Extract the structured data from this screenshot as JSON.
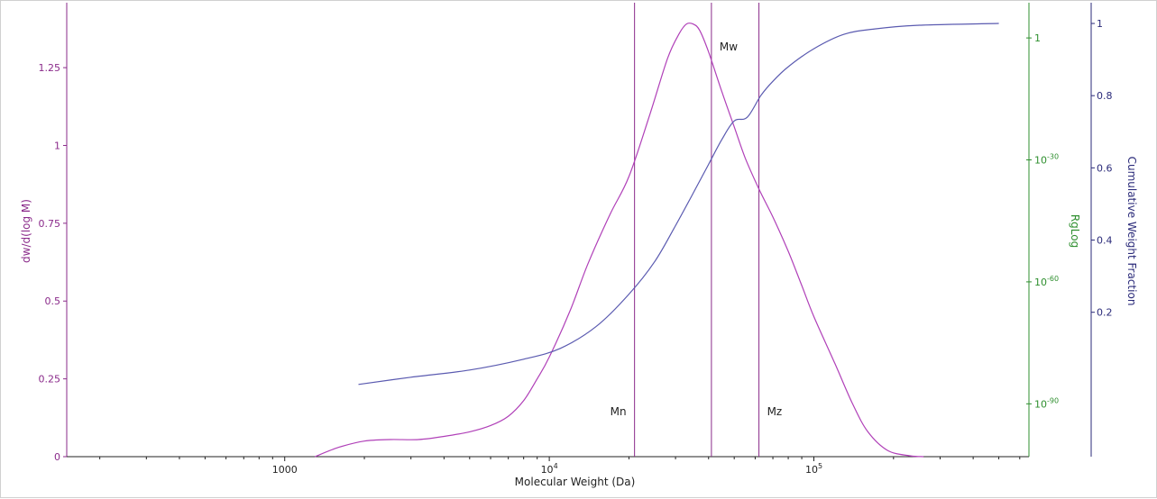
{
  "chart_data": {
    "type": "line",
    "x_axis": {
      "label": "Molecular Weight (Da)",
      "scale": "log",
      "range": [
        150.0,
        650000.0
      ],
      "ticks": [
        {
          "value": 1000,
          "label": "1000"
        },
        {
          "value": 10000,
          "label": "10",
          "exp": "4"
        },
        {
          "value": 100000,
          "label": "10",
          "exp": "5"
        }
      ]
    },
    "y_left": {
      "label": "dw/d(log M)",
      "range": [
        0,
        1.45
      ],
      "ticks": [
        {
          "value": 0,
          "label": "0"
        },
        {
          "value": 0.25,
          "label": "0.25"
        },
        {
          "value": 0.5,
          "label": "0.5"
        },
        {
          "value": 0.75,
          "label": "0.75"
        },
        {
          "value": 1,
          "label": "1"
        },
        {
          "value": 1.25,
          "label": "1.25"
        }
      ]
    },
    "y_rg": {
      "label": "RgLog",
      "scale": "log",
      "log_range": [
        -103,
        8
      ],
      "ticks": [
        {
          "value": 0,
          "label": "1",
          "exp": ""
        },
        {
          "value": -30,
          "label": "10",
          "exp": "-30"
        },
        {
          "value": -60,
          "label": "10",
          "exp": "-60"
        },
        {
          "value": -90,
          "label": "10",
          "exp": "-90"
        }
      ]
    },
    "y_right": {
      "label": "Cumulative Weight Fraction",
      "range": [
        -0.2,
        1.05
      ],
      "ticks": [
        {
          "value": 0.2,
          "label": "0.2"
        },
        {
          "value": 0.4,
          "label": "0.4"
        },
        {
          "value": 0.6,
          "label": "0.6"
        },
        {
          "value": 0.8,
          "label": "0.8"
        },
        {
          "value": 1,
          "label": "1"
        }
      ]
    },
    "series": [
      {
        "color": "#b040b8",
        "axis": "y_left",
        "points": [
          [
            1300,
            0
          ],
          [
            1600,
            0.03
          ],
          [
            2000,
            0.05
          ],
          [
            2500,
            0.055
          ],
          [
            3200,
            0.055
          ],
          [
            4000,
            0.065
          ],
          [
            5000,
            0.08
          ],
          [
            6000,
            0.1
          ],
          [
            7000,
            0.13
          ],
          [
            8000,
            0.18
          ],
          [
            9000,
            0.25
          ],
          [
            10000,
            0.32
          ],
          [
            12000,
            0.47
          ],
          [
            14000,
            0.62
          ],
          [
            17000,
            0.78
          ],
          [
            20000,
            0.9
          ],
          [
            24000,
            1.1
          ],
          [
            28000,
            1.28
          ],
          [
            31000,
            1.36
          ],
          [
            33000,
            1.39
          ],
          [
            35000,
            1.39
          ],
          [
            37000,
            1.37
          ],
          [
            40000,
            1.3
          ],
          [
            45000,
            1.17
          ],
          [
            50000,
            1.06
          ],
          [
            55000,
            0.96
          ],
          [
            62000,
            0.86
          ],
          [
            70000,
            0.77
          ],
          [
            80000,
            0.66
          ],
          [
            90000,
            0.55
          ],
          [
            100000,
            0.45
          ],
          [
            120000,
            0.3
          ],
          [
            140000,
            0.17
          ],
          [
            160000,
            0.08
          ],
          [
            190000,
            0.02
          ],
          [
            230000,
            0.003
          ],
          [
            260000,
            0
          ]
        ]
      },
      {
        "color": "#5a5ab0",
        "axis": "y_right",
        "points": [
          [
            1900,
            0
          ],
          [
            3000,
            0.02
          ],
          [
            5000,
            0.04
          ],
          [
            8000,
            0.07
          ],
          [
            11000,
            0.1
          ],
          [
            15000,
            0.16
          ],
          [
            20000,
            0.25
          ],
          [
            25000,
            0.34
          ],
          [
            30000,
            0.44
          ],
          [
            35000,
            0.53
          ],
          [
            40000,
            0.61
          ],
          [
            45000,
            0.68
          ],
          [
            50000,
            0.73
          ],
          [
            56000,
            0.74
          ],
          [
            63000,
            0.8
          ],
          [
            70000,
            0.84
          ],
          [
            80000,
            0.88
          ],
          [
            100000,
            0.93
          ],
          [
            130000,
            0.97
          ],
          [
            170000,
            0.985
          ],
          [
            250000,
            0.995
          ],
          [
            500000,
            1.0
          ]
        ]
      }
    ],
    "markers": [
      {
        "label": "Mn",
        "x": 21000,
        "label_pos": "bottom-left"
      },
      {
        "label": "Mw",
        "x": 41000,
        "label_pos": "top-right"
      },
      {
        "label": "Mz",
        "x": 62000,
        "label_pos": "bottom-right"
      }
    ],
    "grid": false,
    "legend": "none",
    "colors": {
      "left_axis": "#8a2a8a",
      "rg_axis": "#2f8f2f",
      "right_axis": "#2b2b7a",
      "bottom_axis": "#222222",
      "marker_line": "#8a2a8a"
    }
  }
}
